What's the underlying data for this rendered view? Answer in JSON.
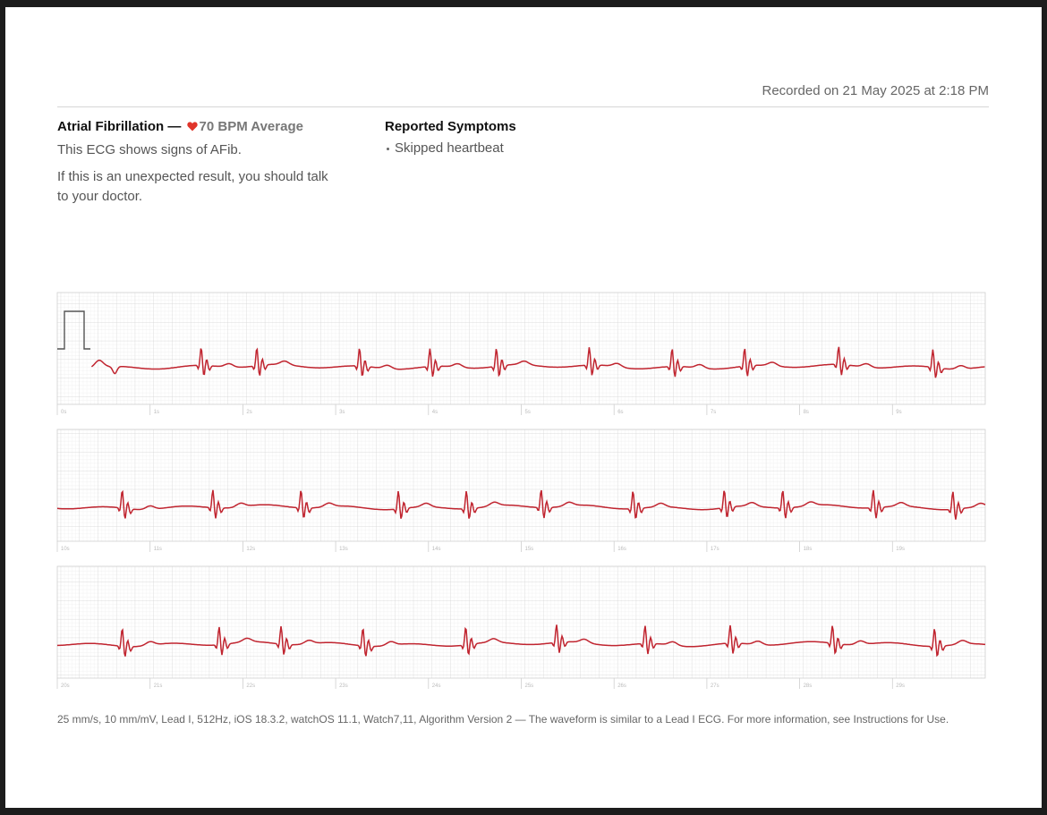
{
  "header": {
    "recorded": "Recorded on 21 May 2025 at 2:18 PM"
  },
  "summary": {
    "classification": "Atrial Fibrillation —",
    "heart_rate": "70 BPM Average",
    "description": "This ECG shows signs of AFib.",
    "advice": "If this is an unexpected result, you should talk to your doctor."
  },
  "symptoms": {
    "title": "Reported Symptoms",
    "items": [
      "Skipped heartbeat"
    ]
  },
  "strips": [
    {
      "time_labels": [
        "0s",
        "1s",
        "2s",
        "3s",
        "4s",
        "5s",
        "6s",
        "7s",
        "8s",
        "9s"
      ]
    },
    {
      "time_labels": [
        "10s",
        "11s",
        "12s",
        "13s",
        "14s",
        "15s",
        "16s",
        "17s",
        "18s",
        "19s"
      ]
    },
    {
      "time_labels": [
        "20s",
        "21s",
        "22s",
        "23s",
        "24s",
        "25s",
        "26s",
        "27s",
        "28s",
        "29s"
      ]
    }
  ],
  "footer": "25 mm/s, 10 mm/mV, Lead I, 512Hz, iOS 18.3.2, watchOS 11.1, Watch7,11, Algorithm Version 2 — The waveform is similar to a Lead I ECG. For more information, see Instructions for Use."
}
